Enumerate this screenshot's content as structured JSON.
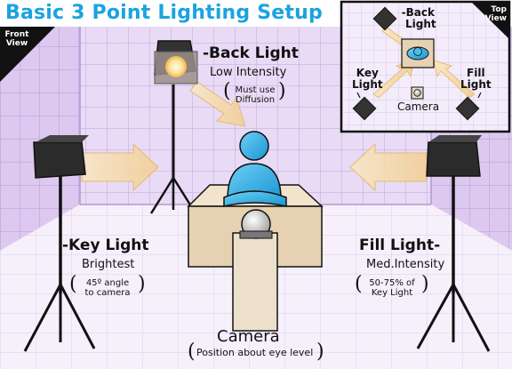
{
  "title": "Basic 3 Point Lighting Setup",
  "front_view": {
    "badge": [
      "Front",
      "View"
    ],
    "back_light": {
      "name": "-Back Light",
      "desc": "Low Intensity",
      "note": [
        "Must use",
        "Diffusion"
      ]
    },
    "key_light": {
      "name": "-Key Light",
      "desc": "Brightest",
      "note": [
        "45º angle",
        "to camera"
      ]
    },
    "fill_light": {
      "name": "Fill Light-",
      "desc": "Med.Intensity",
      "note": [
        "50-75% of",
        "Key Light"
      ]
    },
    "camera": {
      "name": "Camera",
      "note": "Position about eye level"
    }
  },
  "top_view": {
    "badge": [
      "Top",
      "View"
    ],
    "back_light": [
      "-Back",
      "Light"
    ],
    "key_light": [
      "Key",
      "Light"
    ],
    "fill_light": [
      "Fill",
      "Light"
    ],
    "camera": "Camera"
  },
  "colors": {
    "title": "#1aa3e0",
    "room_wall": "#e6d6f2",
    "room_grid": "#c9b0e2",
    "floor": "#f4eefa",
    "person": "#2aa9e0",
    "table": "#e8d8be",
    "arrow": "#f5d9a8"
  }
}
